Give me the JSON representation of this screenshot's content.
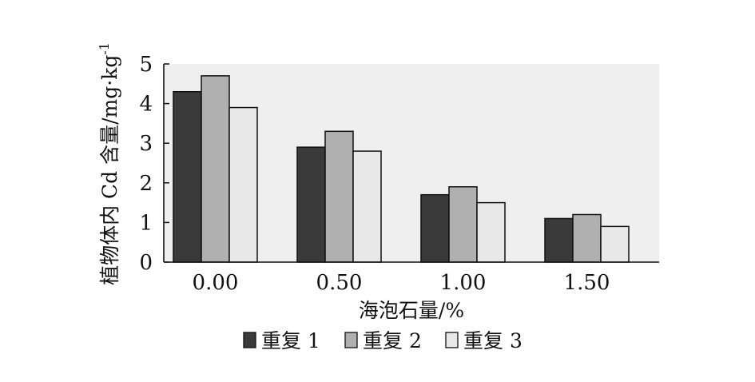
{
  "chart_data": {
    "type": "bar",
    "xlabel": "海泡石量/%",
    "ylabel": "植物体内 Cd 含量/mg·kg",
    "ylabel_superscript": "-1",
    "categories": [
      "0.00",
      "0.50",
      "1.00",
      "1.50"
    ],
    "ylim": [
      0,
      5
    ],
    "yticks": [
      "0",
      "1",
      "2",
      "3",
      "4",
      "5"
    ],
    "grid": false,
    "legend_position": "bottom",
    "series": [
      {
        "name": "重复 1",
        "color": "#3a3a3a",
        "values": [
          4.3,
          2.9,
          1.7,
          1.1
        ]
      },
      {
        "name": "重复 2",
        "color": "#b0b0b0",
        "values": [
          4.7,
          3.3,
          1.9,
          1.2
        ]
      },
      {
        "name": "重复 3",
        "color": "#e8e8e8",
        "values": [
          3.9,
          2.8,
          1.5,
          0.9
        ]
      }
    ],
    "plot_background": "#efefef"
  }
}
